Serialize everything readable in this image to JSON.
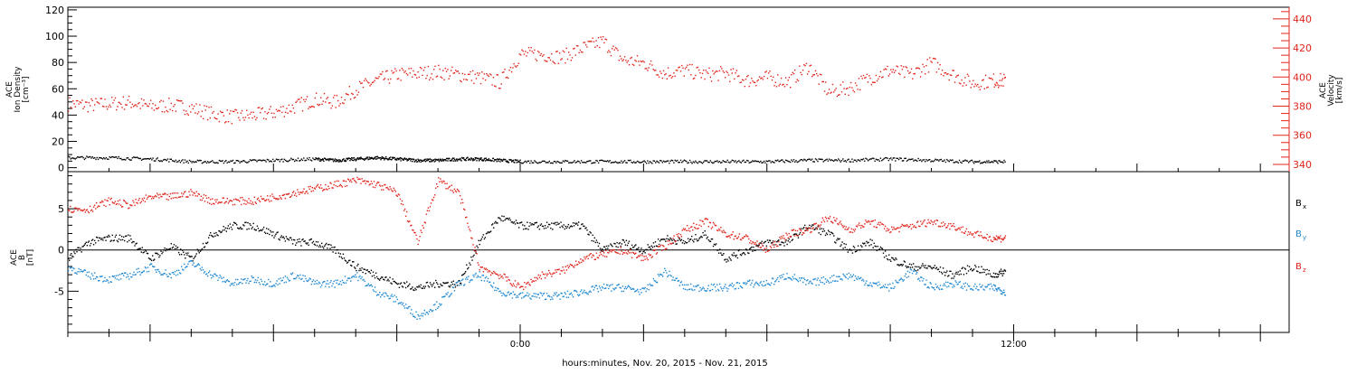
{
  "colors": {
    "density": "#000000",
    "velocity": "#e0241b",
    "bx": "#000000",
    "by": "#1e88d2",
    "bz": "#e0241b",
    "frame": "#000000"
  },
  "xlabel": "hours:minutes, Nov. 20, 2015 - Nov. 21, 2015",
  "x_tick_labels": [
    {
      "hour": 0,
      "label": "0:00"
    },
    {
      "hour": 12,
      "label": "12:00"
    }
  ],
  "chart_data": [
    {
      "type": "scatter",
      "panel": "top",
      "x_unit": "hours relative to Nov. 21, 2015 00:00",
      "xlim": [
        -11,
        18.7
      ],
      "left_axis": {
        "ylabel_lines": [
          "ACE",
          "Ion Density",
          "[cm⁻³]"
        ],
        "ylim": [
          -3,
          122
        ],
        "ticks": [
          0,
          20,
          40,
          60,
          80,
          100,
          120
        ],
        "tick_labels": [
          "0",
          "20",
          "40",
          "60",
          "80",
          "100",
          "120"
        ]
      },
      "right_axis": {
        "ylabel_lines": [
          "ACE",
          "Velocity",
          "[km/s]"
        ],
        "ylim": [
          335,
          448
        ],
        "ticks": [
          340,
          360,
          380,
          400,
          420,
          440
        ],
        "tick_labels": [
          "340",
          "360",
          "380",
          "400",
          "420",
          "440"
        ]
      },
      "series": [
        {
          "key": "density",
          "axis": "left",
          "x": [
            -11.0,
            -10.0,
            -9.0,
            -8.0,
            -7.0,
            -6.0,
            -5.0,
            -4.5,
            -4.0,
            -3.5,
            -3.0,
            -2.5,
            -2.0,
            -1.5,
            -1.0,
            -0.5,
            0.0,
            1.0,
            2.0,
            3.0,
            4.0,
            5.0,
            6.0,
            7.0,
            8.0,
            9.0,
            10.0,
            11.0,
            11.8
          ],
          "values": [
            8,
            8,
            7,
            5,
            5,
            6,
            7,
            6,
            7,
            8,
            7,
            6,
            6,
            7,
            7,
            6,
            5,
            5,
            5,
            5,
            5,
            5,
            5,
            6,
            6,
            7,
            6,
            5,
            5
          ]
        },
        {
          "key": "velocity",
          "axis": "right",
          "x": [
            -11.0,
            -10.5,
            -10.0,
            -9.5,
            -9.0,
            -8.5,
            -8.0,
            -7.5,
            -7.0,
            -6.5,
            -6.0,
            -5.5,
            -5.0,
            -4.5,
            -4.0,
            -3.5,
            -3.0,
            -2.5,
            -2.0,
            -1.5,
            -1.0,
            -0.5,
            0.0,
            0.5,
            1.0,
            1.5,
            2.0,
            2.5,
            3.0,
            3.5,
            4.0,
            4.5,
            5.0,
            5.5,
            6.0,
            6.5,
            7.0,
            7.5,
            8.0,
            8.5,
            9.0,
            9.5,
            10.0,
            10.5,
            11.0,
            11.5,
            11.8
          ],
          "values": [
            382,
            381,
            382,
            383,
            380,
            381,
            379,
            375,
            373,
            374,
            376,
            380,
            385,
            383,
            392,
            398,
            402,
            403,
            404,
            402,
            400,
            397,
            416,
            416,
            414,
            420,
            425,
            412,
            410,
            403,
            405,
            402,
            403,
            398,
            400,
            397,
            408,
            390,
            393,
            400,
            405,
            402,
            410,
            402,
            396,
            398,
            398
          ]
        }
      ]
    },
    {
      "type": "scatter",
      "panel": "bottom",
      "x_unit": "hours relative to Nov. 21, 2015 00:00",
      "xlim": [
        -11,
        18.7
      ],
      "ylabel_lines": [
        "ACE",
        "B",
        "[nT]"
      ],
      "ylim": [
        -10,
        9.5
      ],
      "ticks": [
        -5,
        0,
        5
      ],
      "tick_labels": [
        "-5",
        "0",
        "5"
      ],
      "reference_line": 0,
      "legend": {
        "placement": "right",
        "entries": [
          "B",
          "B",
          "B"
        ],
        "subscripts": [
          "x",
          "y",
          "z"
        ]
      },
      "series": [
        {
          "key": "bx",
          "x": [
            -11.0,
            -10.5,
            -10.0,
            -9.5,
            -9.0,
            -8.5,
            -8.0,
            -7.5,
            -7.0,
            -6.5,
            -6.0,
            -5.5,
            -5.0,
            -4.5,
            -4.0,
            -3.5,
            -3.0,
            -2.5,
            -2.0,
            -1.5,
            -1.0,
            -0.5,
            0.0,
            0.5,
            1.0,
            1.5,
            2.0,
            2.5,
            3.0,
            3.5,
            4.0,
            4.5,
            5.0,
            5.5,
            6.0,
            6.5,
            7.0,
            7.5,
            8.0,
            8.5,
            9.0,
            9.5,
            10.0,
            10.5,
            11.0,
            11.5,
            11.8
          ],
          "values": [
            -1,
            1,
            1.5,
            1.5,
            -1,
            0.5,
            -1,
            2,
            3,
            3,
            2,
            1,
            1,
            0,
            -2,
            -3,
            -4,
            -4.5,
            -4,
            -4,
            1,
            4,
            3,
            3,
            3,
            3,
            0,
            1,
            0,
            1.5,
            1,
            2,
            -1,
            0,
            1,
            1,
            3,
            2,
            0,
            1,
            -1,
            -2,
            -2,
            -3,
            -2,
            -3,
            -2.5
          ]
        },
        {
          "key": "by",
          "x": [
            -11.0,
            -10.5,
            -10.0,
            -9.5,
            -9.0,
            -8.5,
            -8.0,
            -7.5,
            -7.0,
            -6.5,
            -6.0,
            -5.5,
            -5.0,
            -4.5,
            -4.0,
            -3.5,
            -3.0,
            -2.5,
            -2.0,
            -1.5,
            -1.0,
            -0.5,
            0.0,
            0.5,
            1.0,
            1.5,
            2.0,
            2.5,
            3.0,
            3.5,
            4.0,
            4.5,
            5.0,
            5.5,
            6.0,
            6.5,
            7.0,
            7.5,
            8.0,
            8.5,
            9.0,
            9.5,
            10.0,
            10.5,
            11.0,
            11.5,
            11.8
          ],
          "values": [
            -2,
            -3,
            -3.5,
            -3,
            -2,
            -3,
            -1.5,
            -3,
            -4,
            -3.5,
            -4,
            -3,
            -4,
            -4,
            -3,
            -5,
            -6,
            -8,
            -6.5,
            -4,
            -3,
            -5,
            -5.5,
            -5.5,
            -5.5,
            -5,
            -4.5,
            -4.5,
            -5,
            -2.5,
            -4.5,
            -4.5,
            -4.5,
            -4,
            -4,
            -3,
            -4,
            -3.5,
            -3,
            -4,
            -4.5,
            -2.5,
            -4.5,
            -4,
            -4.5,
            -4.5,
            -5
          ]
        },
        {
          "key": "bz",
          "x": [
            -11.0,
            -10.5,
            -10.0,
            -9.5,
            -9.0,
            -8.5,
            -8.0,
            -7.5,
            -7.0,
            -6.5,
            -6.0,
            -5.5,
            -5.0,
            -4.5,
            -4.0,
            -3.5,
            -3.0,
            -2.5,
            -2.0,
            -1.5,
            -1.0,
            -0.5,
            0.0,
            0.5,
            1.0,
            1.5,
            2.0,
            2.5,
            3.0,
            3.5,
            4.0,
            4.5,
            5.0,
            5.5,
            6.0,
            6.5,
            7.0,
            7.5,
            8.0,
            8.5,
            9.0,
            9.5,
            10.0,
            10.5,
            11.0,
            11.5,
            11.8
          ],
          "values": [
            5,
            5,
            6,
            5.5,
            6.5,
            6.5,
            7,
            6,
            6,
            6,
            6.5,
            7,
            7.5,
            8,
            8.5,
            8,
            7,
            1,
            8.5,
            7,
            -2,
            -3,
            -4.5,
            -3,
            -2.5,
            -1,
            -0.5,
            0,
            -1,
            0.5,
            2.5,
            3.5,
            2,
            1.5,
            0,
            2,
            2.5,
            4,
            2.5,
            3.5,
            2.5,
            3,
            3.5,
            3,
            2,
            1.5,
            1.5
          ]
        }
      ]
    }
  ]
}
